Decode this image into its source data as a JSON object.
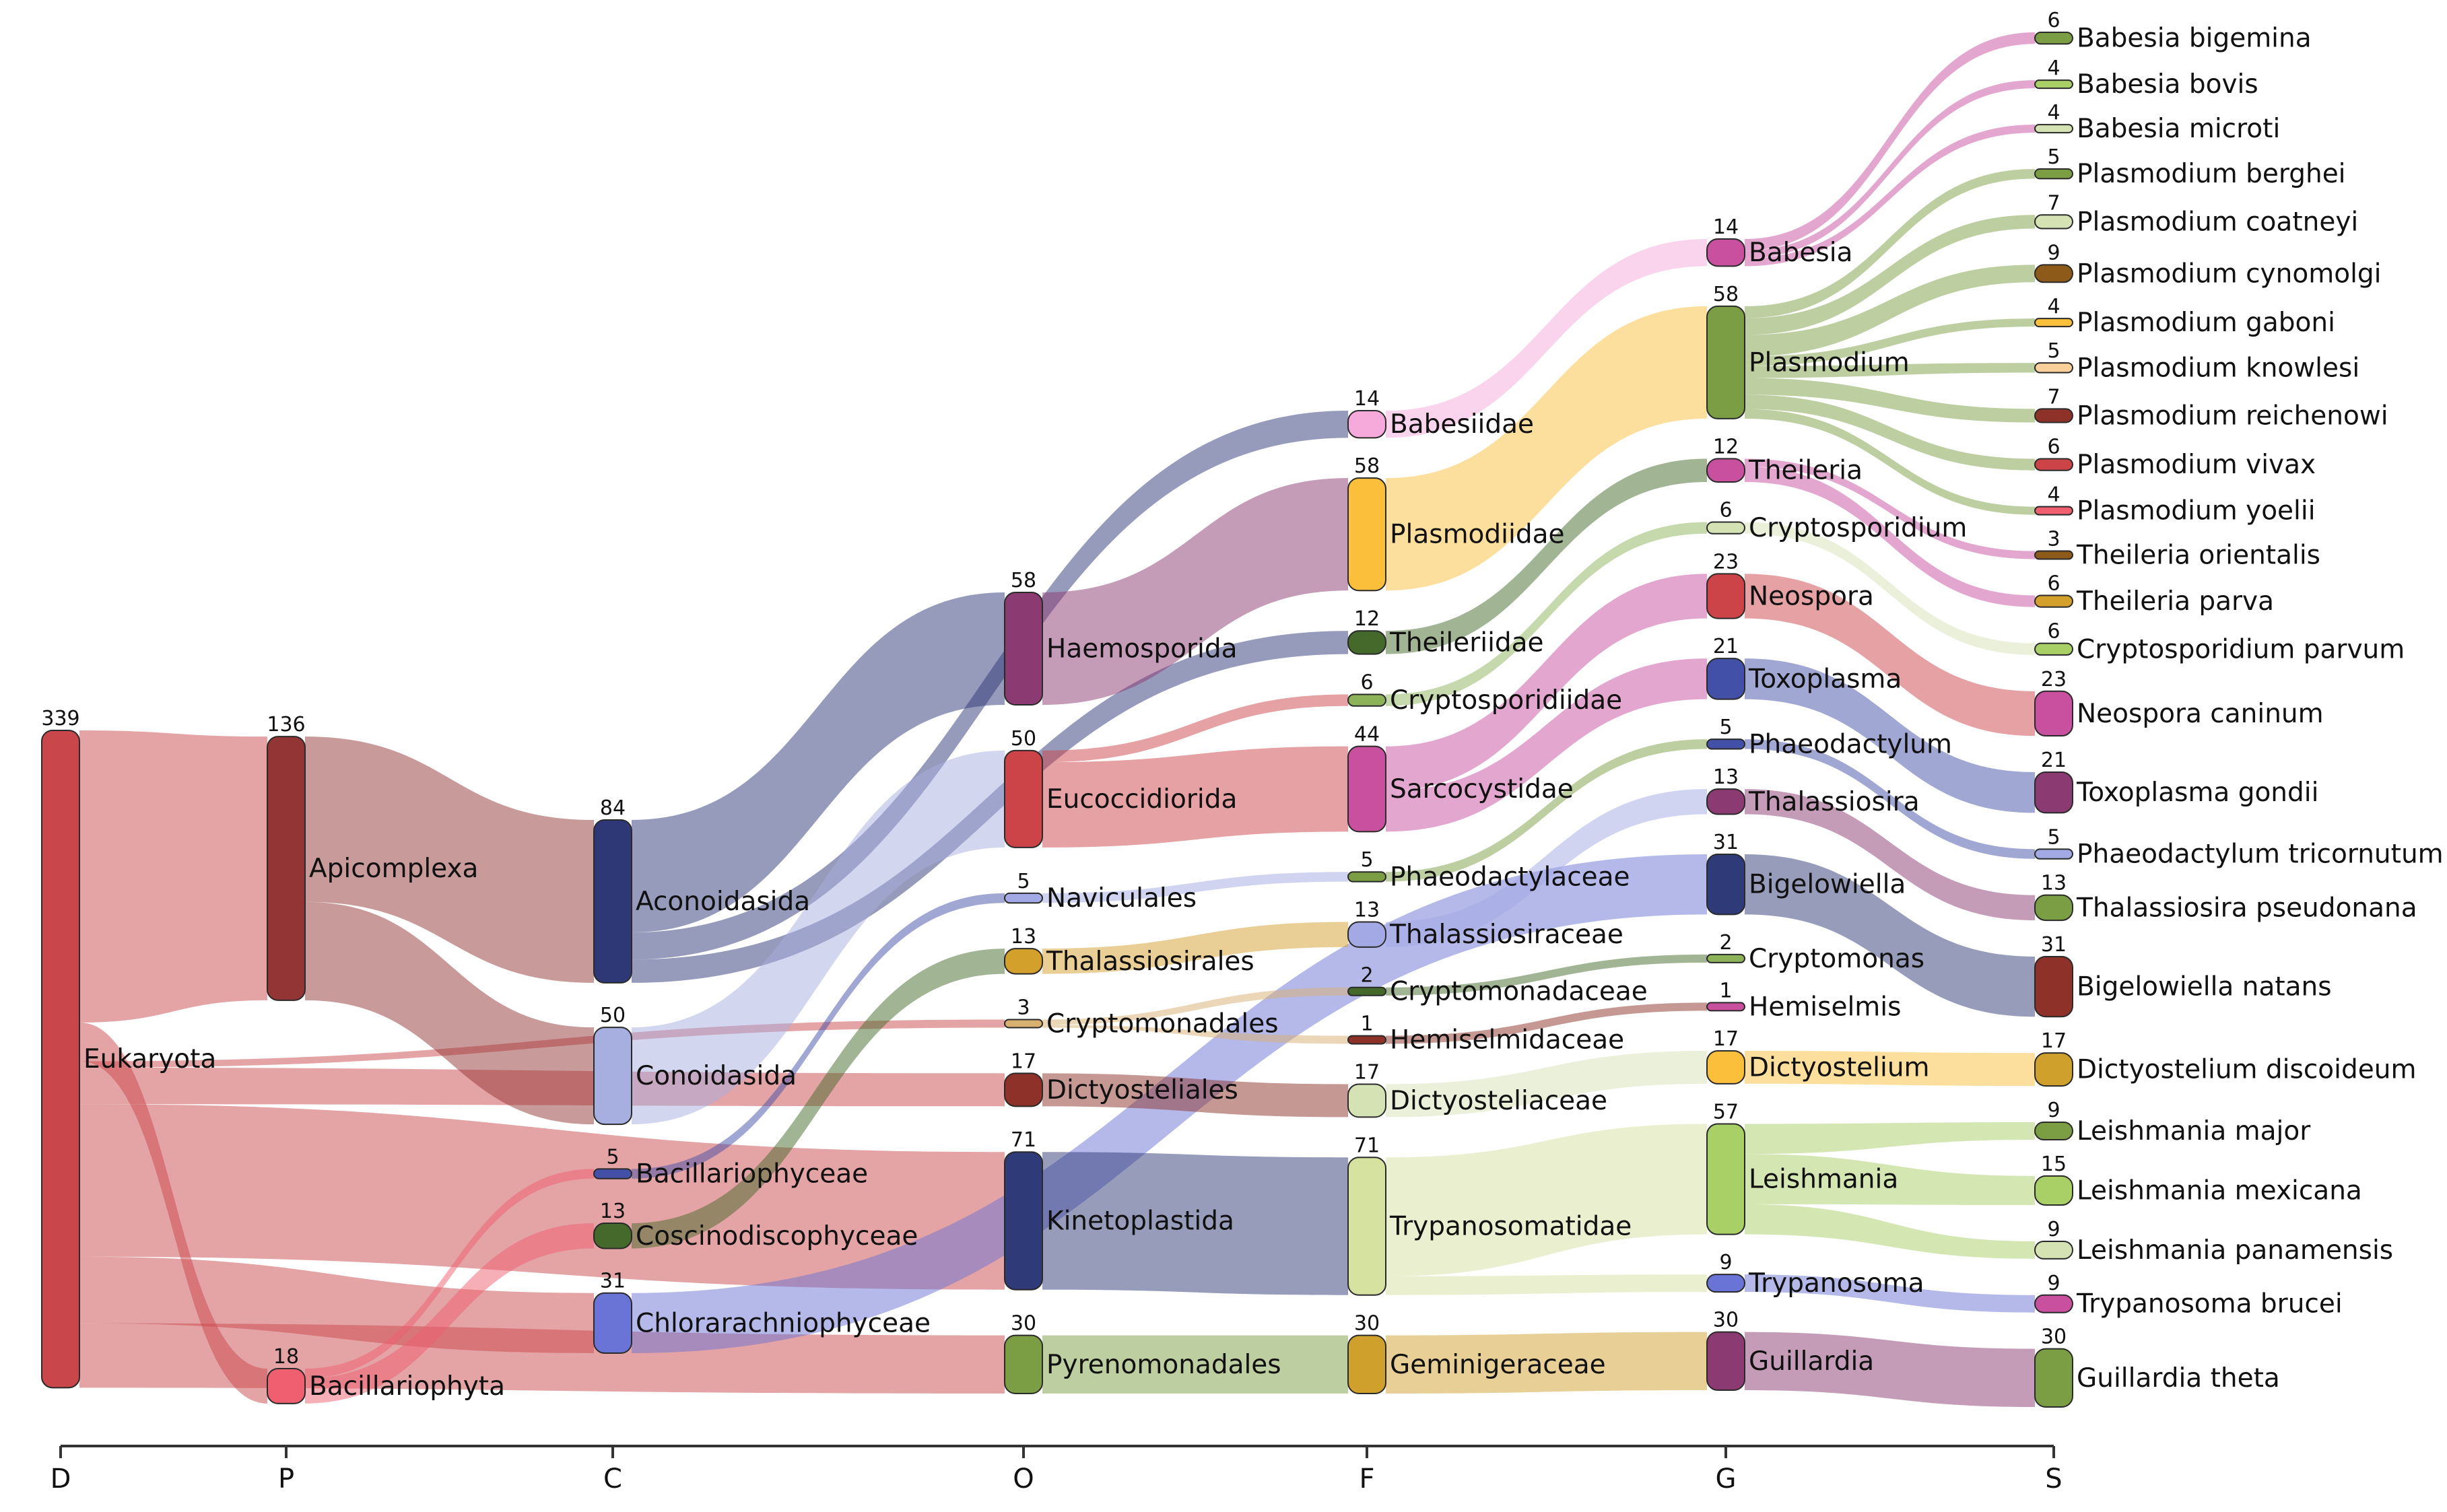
{
  "chart_data": {
    "type": "sankey",
    "title": "",
    "axis": [
      "D",
      "P",
      "C",
      "O",
      "F",
      "G",
      "S"
    ],
    "nodes": [
      {
        "id": "eukaryota",
        "label": "Eukaryota",
        "count": 339,
        "level": 0,
        "color": "#c9474b"
      },
      {
        "id": "apicomplexa",
        "label": "Apicomplexa",
        "count": 136,
        "level": 1,
        "color": "#933535"
      },
      {
        "id": "bacillariophyta",
        "label": "Bacillariophyta",
        "count": 18,
        "level": 1,
        "color": "#ef5f70"
      },
      {
        "id": "aconoidasida",
        "label": "Aconoidasida",
        "count": 84,
        "level": 2,
        "color": "#2e3877"
      },
      {
        "id": "conoidasida",
        "label": "Conoidasida",
        "count": 50,
        "level": 2,
        "color": "#a7aee0"
      },
      {
        "id": "bacillariophyceae",
        "label": "Bacillariophyceae",
        "count": 5,
        "level": 2,
        "color": "#4350a8"
      },
      {
        "id": "coscinodiscophyceae",
        "label": "Coscinodiscophyceae",
        "count": 13,
        "level": 2,
        "color": "#44692a"
      },
      {
        "id": "chlorarachniophyceae",
        "label": "Chlorarachniophyceae",
        "count": 31,
        "level": 2,
        "color": "#6a73d6"
      },
      {
        "id": "haemosporida",
        "label": "Haemosporida",
        "count": 58,
        "level": 3,
        "color": "#8b3a72"
      },
      {
        "id": "eucoccidiorida",
        "label": "Eucoccidiorida",
        "count": 50,
        "level": 3,
        "color": "#cc4448"
      },
      {
        "id": "naviculales",
        "label": "Naviculales",
        "count": 5,
        "level": 3,
        "color": "#a2a9e4"
      },
      {
        "id": "thalassiosirales",
        "label": "Thalassiosirales",
        "count": 13,
        "level": 3,
        "color": "#d4a02c"
      },
      {
        "id": "cryptomonadales",
        "label": "Cryptomonadales",
        "count": 3,
        "level": 3,
        "color": "#d8b070"
      },
      {
        "id": "dictyosteliales",
        "label": "Dictyosteliales",
        "count": 17,
        "level": 3,
        "color": "#8e3129"
      },
      {
        "id": "kinetoplastida",
        "label": "Kinetoplastida",
        "count": 71,
        "level": 3,
        "color": "#2f3a78"
      },
      {
        "id": "pyrenomonadales",
        "label": "Pyrenomonadales",
        "count": 30,
        "level": 3,
        "color": "#7b9d43"
      },
      {
        "id": "babesiidae",
        "label": "Babesiidae",
        "count": 14,
        "level": 4,
        "color": "#f6a9db"
      },
      {
        "id": "plasmodiidae",
        "label": "Plasmodiidae",
        "count": 58,
        "level": 4,
        "color": "#fbbf3c"
      },
      {
        "id": "theileriidae",
        "label": "Theileriidae",
        "count": 12,
        "level": 4,
        "color": "#44692a"
      },
      {
        "id": "cryptosporidiidae",
        "label": "Cryptosporidiidae",
        "count": 6,
        "level": 4,
        "color": "#8cb35a"
      },
      {
        "id": "sarcocystidae",
        "label": "Sarcocystidae",
        "count": 44,
        "level": 4,
        "color": "#c8509f"
      },
      {
        "id": "phaeodactylaceae",
        "label": "Phaeodactylaceae",
        "count": 5,
        "level": 4,
        "color": "#7b9d43"
      },
      {
        "id": "thalassiosiraceae",
        "label": "Thalassiosiraceae",
        "count": 13,
        "level": 4,
        "color": "#a2a9e4"
      },
      {
        "id": "cryptomonadaceae",
        "label": "Cryptomonadaceae",
        "count": 2,
        "level": 4,
        "color": "#44692a"
      },
      {
        "id": "hemiselmidaceae",
        "label": "Hemiselmidaceae",
        "count": 1,
        "level": 4,
        "color": "#8e3129"
      },
      {
        "id": "dictyosteliaceae",
        "label": "Dictyosteliaceae",
        "count": 17,
        "level": 4,
        "color": "#d5e2b4"
      },
      {
        "id": "trypanosomatidae",
        "label": "Trypanosomatidae",
        "count": 71,
        "level": 4,
        "color": "#d5e2a0"
      },
      {
        "id": "geminigeraceae",
        "label": "Geminigeraceae",
        "count": 30,
        "level": 4,
        "color": "#d0a02d"
      },
      {
        "id": "babesia",
        "label": "Babesia",
        "count": 14,
        "level": 5,
        "color": "#c8509f"
      },
      {
        "id": "plasmodium",
        "label": "Plasmodium",
        "count": 58,
        "level": 5,
        "color": "#7b9d43"
      },
      {
        "id": "theileria",
        "label": "Theileria",
        "count": 12,
        "level": 5,
        "color": "#c8509f"
      },
      {
        "id": "cryptosporidium",
        "label": "Cryptosporidium",
        "count": 6,
        "level": 5,
        "color": "#d5e2b4"
      },
      {
        "id": "neospora",
        "label": "Neospora",
        "count": 23,
        "level": 5,
        "color": "#cc4448"
      },
      {
        "id": "toxoplasma",
        "label": "Toxoplasma",
        "count": 21,
        "level": 5,
        "color": "#4350a8"
      },
      {
        "id": "phaeodactylum",
        "label": "Phaeodactylum",
        "count": 5,
        "level": 5,
        "color": "#4350a8"
      },
      {
        "id": "thalassiosira",
        "label": "Thalassiosira",
        "count": 13,
        "level": 5,
        "color": "#8b3a72"
      },
      {
        "id": "bigelowiella",
        "label": "Bigelowiella",
        "count": 31,
        "level": 5,
        "color": "#2f3a78"
      },
      {
        "id": "cryptomonas",
        "label": "Cryptomonas",
        "count": 2,
        "level": 5,
        "color": "#8cb35a"
      },
      {
        "id": "hemiselmis",
        "label": "Hemiselmis",
        "count": 1,
        "level": 5,
        "color": "#c8509f"
      },
      {
        "id": "dictyostelium",
        "label": "Dictyostelium",
        "count": 17,
        "level": 5,
        "color": "#fbbf3c"
      },
      {
        "id": "leishmania",
        "label": "Leishmania",
        "count": 57,
        "level": 5,
        "color": "#a9cf67"
      },
      {
        "id": "trypanosoma",
        "label": "Trypanosoma",
        "count": 9,
        "level": 5,
        "color": "#6a73d6"
      },
      {
        "id": "guillardia",
        "label": "Guillardia",
        "count": 30,
        "level": 5,
        "color": "#8b3a72"
      },
      {
        "id": "babesia_bigemina",
        "label": "Babesia bigemina",
        "count": 6,
        "level": 6,
        "color": "#7b9d43"
      },
      {
        "id": "babesia_bovis",
        "label": "Babesia bovis",
        "count": 4,
        "level": 6,
        "color": "#a9cf67"
      },
      {
        "id": "babesia_microti",
        "label": "Babesia microti",
        "count": 4,
        "level": 6,
        "color": "#d5e2b4"
      },
      {
        "id": "plasmodium_berghei",
        "label": "Plasmodium berghei",
        "count": 5,
        "level": 6,
        "color": "#7b9d43"
      },
      {
        "id": "plasmodium_coatneyi",
        "label": "Plasmodium coatneyi",
        "count": 7,
        "level": 6,
        "color": "#d5e2b4"
      },
      {
        "id": "plasmodium_cynomolgi",
        "label": "Plasmodium cynomolgi",
        "count": 9,
        "level": 6,
        "color": "#8e5a1a"
      },
      {
        "id": "plasmodium_gaboni",
        "label": "Plasmodium gaboni",
        "count": 4,
        "level": 6,
        "color": "#fbbf3c"
      },
      {
        "id": "plasmodium_knowlesi",
        "label": "Plasmodium knowlesi",
        "count": 5,
        "level": 6,
        "color": "#fad09a"
      },
      {
        "id": "plasmodium_reichenowi",
        "label": "Plasmodium reichenowi",
        "count": 7,
        "level": 6,
        "color": "#8e3129"
      },
      {
        "id": "plasmodium_vivax",
        "label": "Plasmodium vivax",
        "count": 6,
        "level": 6,
        "color": "#cc4448"
      },
      {
        "id": "plasmodium_yoelii",
        "label": "Plasmodium yoelii",
        "count": 4,
        "level": 6,
        "color": "#ef5f70"
      },
      {
        "id": "theileria_orientalis",
        "label": "Theileria orientalis",
        "count": 3,
        "level": 6,
        "color": "#8e5a1a"
      },
      {
        "id": "theileria_parva",
        "label": "Theileria parva",
        "count": 6,
        "level": 6,
        "color": "#d4a02c"
      },
      {
        "id": "cryptosporidium_parvum",
        "label": "Cryptosporidium parvum",
        "count": 6,
        "level": 6,
        "color": "#a9cf67"
      },
      {
        "id": "neospora_caninum",
        "label": "Neospora caninum",
        "count": 23,
        "level": 6,
        "color": "#c8509f"
      },
      {
        "id": "toxoplasma_gondii",
        "label": "Toxoplasma gondii",
        "count": 21,
        "level": 6,
        "color": "#8b3a72"
      },
      {
        "id": "phaeodactylum_tricornutum",
        "label": "Phaeodactylum tricornutum",
        "count": 5,
        "level": 6,
        "color": "#a2a9e4"
      },
      {
        "id": "thalassiosira_pseudonana",
        "label": "Thalassiosira pseudonana",
        "count": 13,
        "level": 6,
        "color": "#7b9d43"
      },
      {
        "id": "bigelowiella_natans",
        "label": "Bigelowiella natans",
        "count": 31,
        "level": 6,
        "color": "#8e3129"
      },
      {
        "id": "dictyostelium_discoideum",
        "label": "Dictyostelium discoideum",
        "count": 17,
        "level": 6,
        "color": "#d0a02d"
      },
      {
        "id": "leishmania_major",
        "label": "Leishmania major",
        "count": 9,
        "level": 6,
        "color": "#7b9d43"
      },
      {
        "id": "leishmania_mexicana",
        "label": "Leishmania mexicana",
        "count": 15,
        "level": 6,
        "color": "#a9cf67"
      },
      {
        "id": "leishmania_panamensis",
        "label": "Leishmania panamensis",
        "count": 9,
        "level": 6,
        "color": "#d5e2b4"
      },
      {
        "id": "trypanosoma_brucei",
        "label": "Trypanosoma brucei",
        "count": 9,
        "level": 6,
        "color": "#c8509f"
      },
      {
        "id": "guillardia_theta",
        "label": "Guillardia theta",
        "count": 30,
        "level": 6,
        "color": "#7b9d43"
      }
    ],
    "links": [
      {
        "source": "eukaryota",
        "target": "apicomplexa",
        "value": 136
      },
      {
        "source": "eukaryota",
        "target": "bacillariophyta",
        "value": 18
      },
      {
        "source": "eukaryota",
        "target": "cryptomonadales",
        "value": 3
      },
      {
        "source": "eukaryota",
        "target": "dictyosteliales",
        "value": 17
      },
      {
        "source": "eukaryota",
        "target": "kinetoplastida",
        "value": 71
      },
      {
        "source": "eukaryota",
        "target": "chlorarachniophyceae",
        "value": 31
      },
      {
        "source": "eukaryota",
        "target": "pyrenomonadales",
        "value": 30
      },
      {
        "source": "apicomplexa",
        "target": "aconoidasida",
        "value": 84
      },
      {
        "source": "apicomplexa",
        "target": "conoidasida",
        "value": 50
      },
      {
        "source": "bacillariophyta",
        "target": "bacillariophyceae",
        "value": 5
      },
      {
        "source": "bacillariophyta",
        "target": "coscinodiscophyceae",
        "value": 13
      },
      {
        "source": "aconoidasida",
        "target": "haemosporida",
        "value": 58
      },
      {
        "source": "aconoidasida",
        "target": "babesiidae",
        "value": 14
      },
      {
        "source": "aconoidasida",
        "target": "theileriidae",
        "value": 12
      },
      {
        "source": "conoidasida",
        "target": "eucoccidiorida",
        "value": 50
      },
      {
        "source": "bacillariophyceae",
        "target": "naviculales",
        "value": 5
      },
      {
        "source": "coscinodiscophyceae",
        "target": "thalassiosirales",
        "value": 13
      },
      {
        "source": "chlorarachniophyceae",
        "target": "bigelowiella",
        "value": 31
      },
      {
        "source": "haemosporida",
        "target": "plasmodiidae",
        "value": 58
      },
      {
        "source": "eucoccidiorida",
        "target": "cryptosporidiidae",
        "value": 6
      },
      {
        "source": "eucoccidiorida",
        "target": "sarcocystidae",
        "value": 44
      },
      {
        "source": "naviculales",
        "target": "phaeodactylaceae",
        "value": 5
      },
      {
        "source": "thalassiosirales",
        "target": "thalassiosiraceae",
        "value": 13
      },
      {
        "source": "cryptomonadales",
        "target": "cryptomonadaceae",
        "value": 2
      },
      {
        "source": "cryptomonadales",
        "target": "hemiselmidaceae",
        "value": 1
      },
      {
        "source": "dictyosteliales",
        "target": "dictyosteliaceae",
        "value": 17
      },
      {
        "source": "kinetoplastida",
        "target": "trypanosomatidae",
        "value": 71
      },
      {
        "source": "pyrenomonadales",
        "target": "geminigeraceae",
        "value": 30
      },
      {
        "source": "babesiidae",
        "target": "babesia",
        "value": 14
      },
      {
        "source": "plasmodiidae",
        "target": "plasmodium",
        "value": 58
      },
      {
        "source": "theileriidae",
        "target": "theileria",
        "value": 12
      },
      {
        "source": "cryptosporidiidae",
        "target": "cryptosporidium",
        "value": 6
      },
      {
        "source": "sarcocystidae",
        "target": "neospora",
        "value": 23
      },
      {
        "source": "sarcocystidae",
        "target": "toxoplasma",
        "value": 21
      },
      {
        "source": "phaeodactylaceae",
        "target": "phaeodactylum",
        "value": 5
      },
      {
        "source": "thalassiosiraceae",
        "target": "thalassiosira",
        "value": 13
      },
      {
        "source": "cryptomonadaceae",
        "target": "cryptomonas",
        "value": 2
      },
      {
        "source": "hemiselmidaceae",
        "target": "hemiselmis",
        "value": 1
      },
      {
        "source": "dictyosteliaceae",
        "target": "dictyostelium",
        "value": 17
      },
      {
        "source": "trypanosomatidae",
        "target": "leishmania",
        "value": 57
      },
      {
        "source": "trypanosomatidae",
        "target": "trypanosoma",
        "value": 9
      },
      {
        "source": "geminigeraceae",
        "target": "guillardia",
        "value": 30
      },
      {
        "source": "babesia",
        "target": "babesia_bigemina",
        "value": 6
      },
      {
        "source": "babesia",
        "target": "babesia_bovis",
        "value": 4
      },
      {
        "source": "babesia",
        "target": "babesia_microti",
        "value": 4
      },
      {
        "source": "plasmodium",
        "target": "plasmodium_berghei",
        "value": 5
      },
      {
        "source": "plasmodium",
        "target": "plasmodium_coatneyi",
        "value": 7
      },
      {
        "source": "plasmodium",
        "target": "plasmodium_cynomolgi",
        "value": 9
      },
      {
        "source": "plasmodium",
        "target": "plasmodium_gaboni",
        "value": 4
      },
      {
        "source": "plasmodium",
        "target": "plasmodium_knowlesi",
        "value": 5
      },
      {
        "source": "plasmodium",
        "target": "plasmodium_reichenowi",
        "value": 7
      },
      {
        "source": "plasmodium",
        "target": "plasmodium_vivax",
        "value": 6
      },
      {
        "source": "plasmodium",
        "target": "plasmodium_yoelii",
        "value": 4
      },
      {
        "source": "theileria",
        "target": "theileria_orientalis",
        "value": 3
      },
      {
        "source": "theileria",
        "target": "theileria_parva",
        "value": 6
      },
      {
        "source": "cryptosporidium",
        "target": "cryptosporidium_parvum",
        "value": 6
      },
      {
        "source": "neospora",
        "target": "neospora_caninum",
        "value": 23
      },
      {
        "source": "toxoplasma",
        "target": "toxoplasma_gondii",
        "value": 21
      },
      {
        "source": "phaeodactylum",
        "target": "phaeodactylum_tricornutum",
        "value": 5
      },
      {
        "source": "thalassiosira",
        "target": "thalassiosira_pseudonana",
        "value": 13
      },
      {
        "source": "bigelowiella",
        "target": "bigelowiella_natans",
        "value": 31
      },
      {
        "source": "dictyostelium",
        "target": "dictyostelium_discoideum",
        "value": 17
      },
      {
        "source": "leishmania",
        "target": "leishmania_major",
        "value": 9
      },
      {
        "source": "leishmania",
        "target": "leishmania_mexicana",
        "value": 15
      },
      {
        "source": "leishmania",
        "target": "leishmania_panamensis",
        "value": 9
      },
      {
        "source": "trypanosoma",
        "target": "trypanosoma_brucei",
        "value": 9
      },
      {
        "source": "guillardia",
        "target": "guillardia_theta",
        "value": 30
      }
    ]
  }
}
